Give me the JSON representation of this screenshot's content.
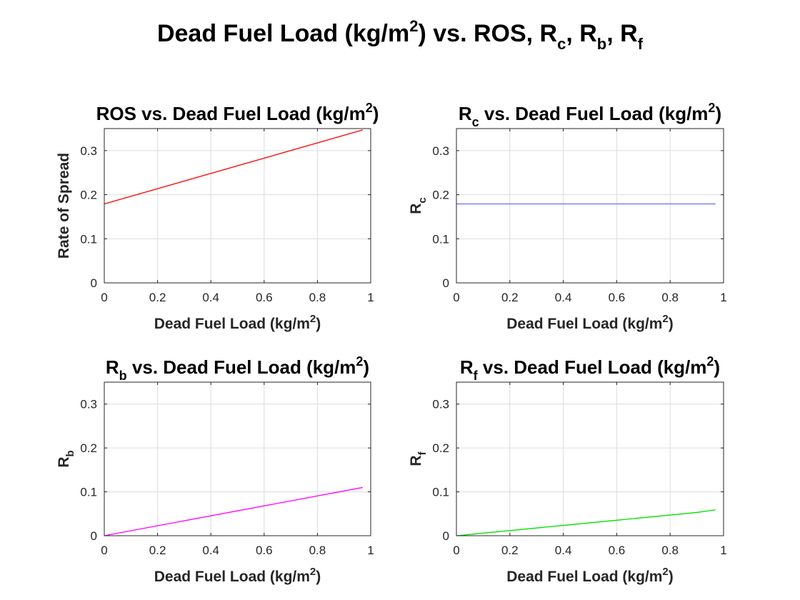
{
  "figure": {
    "title": {
      "base": "Dead Fuel Load (kg/m",
      "sup": "2",
      "after": ") vs. ROS, R",
      "sub1": "c",
      "mid1": ", R",
      "sub2": "b",
      "mid2": ", R",
      "sub3": "f"
    }
  },
  "chart_data": [
    {
      "type": "line",
      "title": {
        "lead": "ROS",
        "sub": "",
        "rest": " vs. Dead Fuel Load (kg/m",
        "sup": "2",
        "end": ")"
      },
      "xlabel": {
        "text": "Dead Fuel Load (kg/m",
        "sup": "2",
        "end": ")"
      },
      "ylabel": {
        "text": "Rate of Spread",
        "sub": ""
      },
      "xlim": [
        0,
        1
      ],
      "ylim": [
        0,
        0.35
      ],
      "xticks": [
        0,
        0.2,
        0.4,
        0.6,
        0.8,
        1
      ],
      "xtick_labels": [
        "0",
        "0.2",
        "0.4",
        "0.6",
        "0.8",
        "1"
      ],
      "yticks": [
        0,
        0.1,
        0.2,
        0.3
      ],
      "ytick_labels": [
        "0",
        "0.1",
        "0.2",
        "0.3"
      ],
      "grid": true,
      "color": "#ff0000",
      "x": [
        0,
        0.97
      ],
      "y": [
        0.179,
        0.347
      ]
    },
    {
      "type": "line",
      "title": {
        "lead": "R",
        "sub": "c",
        "rest": " vs. Dead Fuel Load (kg/m",
        "sup": "2",
        "end": ")"
      },
      "xlabel": {
        "text": "Dead Fuel Load (kg/m",
        "sup": "2",
        "end": ")"
      },
      "ylabel": {
        "text": "R",
        "sub": "c"
      },
      "xlim": [
        0,
        1
      ],
      "ylim": [
        0,
        0.35
      ],
      "xticks": [
        0,
        0.2,
        0.4,
        0.6,
        0.8,
        1
      ],
      "xtick_labels": [
        "0",
        "0.2",
        "0.4",
        "0.6",
        "0.8",
        "1"
      ],
      "yticks": [
        0,
        0.1,
        0.2,
        0.3
      ],
      "ytick_labels": [
        "0",
        "0.1",
        "0.2",
        "0.3"
      ],
      "grid": true,
      "color": "#6b6bff",
      "x": [
        0,
        0.97
      ],
      "y": [
        0.179,
        0.179
      ]
    },
    {
      "type": "line",
      "title": {
        "lead": "R",
        "sub": "b",
        "rest": " vs. Dead Fuel Load (kg/m",
        "sup": "2",
        "end": ")"
      },
      "xlabel": {
        "text": "Dead Fuel Load (kg/m",
        "sup": "2",
        "end": ")"
      },
      "ylabel": {
        "text": "R",
        "sub": "b"
      },
      "xlim": [
        0,
        1
      ],
      "ylim": [
        0,
        0.35
      ],
      "xticks": [
        0,
        0.2,
        0.4,
        0.6,
        0.8,
        1
      ],
      "xtick_labels": [
        "0",
        "0.2",
        "0.4",
        "0.6",
        "0.8",
        "1"
      ],
      "yticks": [
        0,
        0.1,
        0.2,
        0.3
      ],
      "ytick_labels": [
        "0",
        "0.1",
        "0.2",
        "0.3"
      ],
      "grid": true,
      "color": "#ff00ff",
      "x": [
        0,
        0.97
      ],
      "y": [
        0,
        0.11
      ]
    },
    {
      "type": "line",
      "title": {
        "lead": "R",
        "sub": "f",
        "rest": " vs. Dead Fuel Load (kg/m",
        "sup": "2",
        "end": ")"
      },
      "xlabel": {
        "text": "Dead Fuel Load (kg/m",
        "sup": "2",
        "end": ")"
      },
      "ylabel": {
        "text": "R",
        "sub": "f"
      },
      "xlim": [
        0,
        1
      ],
      "ylim": [
        0,
        0.35
      ],
      "xticks": [
        0,
        0.2,
        0.4,
        0.6,
        0.8,
        1
      ],
      "xtick_labels": [
        "0",
        "0.2",
        "0.4",
        "0.6",
        "0.8",
        "1"
      ],
      "yticks": [
        0,
        0.1,
        0.2,
        0.3
      ],
      "ytick_labels": [
        "0",
        "0.1",
        "0.2",
        "0.3"
      ],
      "grid": true,
      "color": "#00e000",
      "x": [
        0,
        0.1,
        0.2,
        0.3,
        0.4,
        0.5,
        0.6,
        0.7,
        0.8,
        0.9,
        0.97
      ],
      "y": [
        0,
        0.0058,
        0.0117,
        0.0176,
        0.0235,
        0.0294,
        0.0353,
        0.0412,
        0.0471,
        0.053,
        0.059
      ]
    }
  ]
}
